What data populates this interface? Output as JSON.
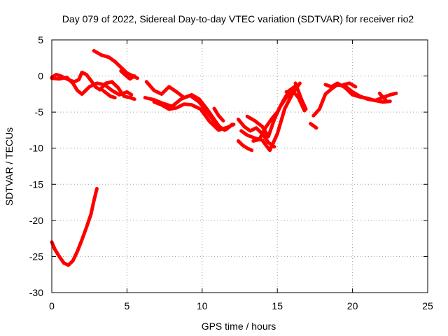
{
  "chart_data": {
    "type": "scatter",
    "title": "Day 079 of 2022, Sidereal Day-to-day VTEC variation (SDTVAR) for receiver rio2",
    "xlabel": "GPS time / hours",
    "ylabel": "SDTVAR / TECUs",
    "xlim": [
      0,
      25
    ],
    "ylim": [
      -30,
      5
    ],
    "xticks": [
      0,
      5,
      10,
      15,
      20,
      25
    ],
    "yticks": [
      -30,
      -25,
      -20,
      -15,
      -10,
      -5,
      0,
      5
    ],
    "grid": true,
    "series": [
      {
        "name": "SDTVAR",
        "color": "#ff0000",
        "segments": [
          {
            "x": [
              0.0,
              0.3,
              0.6,
              0.9,
              1.2,
              1.5,
              1.8,
              2.0,
              2.3,
              2.6,
              2.9,
              3.2,
              3.6,
              4.0,
              4.4,
              4.8,
              5.2,
              5.5
            ],
            "y": [
              -0.2,
              0.2,
              0.0,
              -0.3,
              -0.6,
              -0.8,
              -0.5,
              0.5,
              0.2,
              -0.6,
              -1.5,
              -1.9,
              -1.0,
              -0.8,
              -1.6,
              -2.8,
              -3.0,
              -3.2
            ]
          },
          {
            "x": [
              0.0,
              0.5,
              1.0,
              1.4,
              1.7,
              2.0,
              2.5,
              3.0,
              3.5,
              4.0,
              4.5,
              5.0,
              5.3
            ],
            "y": [
              -0.3,
              -0.4,
              -0.2,
              -1.0,
              -2.0,
              -2.5,
              -1.5,
              -1.0,
              -1.2,
              -2.0,
              -2.6,
              -2.2,
              -2.6
            ]
          },
          {
            "x": [
              2.8,
              3.3,
              3.8,
              4.2,
              4.6,
              5.0,
              5.4,
              5.7
            ],
            "y": [
              3.5,
              2.9,
              2.6,
              2.0,
              1.2,
              0.4,
              0.0,
              -0.3
            ]
          },
          {
            "x": [
              4.6,
              4.9,
              5.2,
              5.5
            ],
            "y": [
              0.7,
              0.1,
              -0.4,
              0.0
            ]
          },
          {
            "x": [
              3.4,
              3.9,
              4.2
            ],
            "y": [
              -2.0,
              -2.8,
              -3.0
            ]
          },
          {
            "x": [
              0.0,
              0.2,
              0.5,
              0.8,
              1.1,
              1.4,
              1.7,
              2.0,
              2.3,
              2.6,
              2.8,
              3.0
            ],
            "y": [
              -23.0,
              -24.0,
              -25.0,
              -25.9,
              -26.2,
              -25.6,
              -24.3,
              -22.7,
              -21.0,
              -19.2,
              -17.3,
              -15.6
            ]
          },
          {
            "x": [
              6.3,
              6.8,
              7.3,
              7.8,
              8.3,
              8.8,
              9.3,
              9.8,
              10.3,
              10.8,
              11.2,
              11.6,
              12.0
            ],
            "y": [
              -0.8,
              -2.0,
              -2.5,
              -1.5,
              -2.2,
              -3.0,
              -2.6,
              -3.2,
              -4.5,
              -6.0,
              -7.2,
              -7.4,
              -6.7
            ]
          },
          {
            "x": [
              6.2,
              6.8,
              7.4,
              8.0,
              8.6,
              9.2,
              9.8,
              10.4,
              11.0,
              11.5
            ],
            "y": [
              -3.0,
              -3.3,
              -3.8,
              -4.2,
              -3.2,
              -2.7,
              -3.6,
              -5.2,
              -6.8,
              -7.5
            ]
          },
          {
            "x": [
              6.8,
              7.3,
              7.8,
              8.3,
              8.8,
              9.3,
              9.9,
              10.5,
              11.1,
              11.7,
              12.1
            ],
            "y": [
              -3.6,
              -4.0,
              -4.6,
              -4.4,
              -3.9,
              -4.0,
              -4.6,
              -6.3,
              -7.5,
              -7.1,
              -6.7
            ]
          },
          {
            "x": [
              10.8,
              11.1,
              11.4
            ],
            "y": [
              -4.5,
              -5.5,
              -6.2
            ]
          },
          {
            "x": [
              12.4,
              12.8,
              13.2,
              13.6,
              14.0,
              14.4,
              14.8
            ],
            "y": [
              -6.0,
              -7.0,
              -7.6,
              -7.2,
              -8.0,
              -9.2,
              -9.8
            ]
          },
          {
            "x": [
              12.4,
              12.7,
              13.0,
              13.3
            ],
            "y": [
              -9.0,
              -9.6,
              -10.0,
              -10.3
            ]
          },
          {
            "x": [
              12.6,
              13.0,
              13.5,
              14.0,
              14.5,
              15.0,
              15.5,
              16.0,
              16.5
            ],
            "y": [
              -7.6,
              -8.2,
              -8.6,
              -8.9,
              -10.3,
              -8.0,
              -4.5,
              -2.5,
              -1.0
            ]
          },
          {
            "x": [
              13.0,
              13.5,
              14.0,
              14.4,
              14.8,
              15.2,
              15.6,
              16.0
            ],
            "y": [
              -5.6,
              -6.2,
              -7.0,
              -8.4,
              -6.0,
              -4.2,
              -3.0,
              -2.2
            ]
          },
          {
            "x": [
              13.4,
              13.8,
              14.2,
              14.6,
              15.0,
              15.4,
              15.8,
              16.2
            ],
            "y": [
              -9.0,
              -8.8,
              -7.2,
              -6.0,
              -5.0,
              -3.4,
              -2.0,
              -1.4
            ]
          },
          {
            "x": [
              15.6,
              16.0,
              16.4,
              16.8
            ],
            "y": [
              -2.2,
              -2.0,
              -3.0,
              -4.8
            ]
          },
          {
            "x": [
              16.2,
              16.6,
              16.9
            ],
            "y": [
              -1.0,
              -3.2,
              -4.6
            ]
          },
          {
            "x": [
              17.2,
              17.4,
              17.6
            ],
            "y": [
              -6.6,
              -6.9,
              -7.2
            ]
          },
          {
            "x": [
              17.4,
              17.8,
              18.2,
              18.6,
              19.0,
              19.5,
              20.0,
              20.5,
              21.0,
              21.5,
              22.0,
              22.5,
              22.9
            ],
            "y": [
              -5.5,
              -4.6,
              -2.5,
              -1.8,
              -1.2,
              -1.4,
              -2.2,
              -2.8,
              -3.2,
              -3.4,
              -3.0,
              -2.6,
              -2.4
            ]
          },
          {
            "x": [
              18.2,
              18.6,
              19.0,
              19.5,
              20.0,
              20.5,
              21.0,
              21.5,
              22.0,
              22.5
            ],
            "y": [
              -1.2,
              -1.5,
              -1.0,
              -1.6,
              -2.6,
              -2.9,
              -3.1,
              -3.4,
              -3.6,
              -3.5
            ]
          },
          {
            "x": [
              19.4,
              19.8,
              20.2
            ],
            "y": [
              -1.2,
              -1.0,
              -1.5
            ]
          },
          {
            "x": [
              21.8,
              22.0,
              22.2
            ],
            "y": [
              -2.4,
              -2.9,
              -3.3
            ]
          }
        ]
      }
    ]
  }
}
